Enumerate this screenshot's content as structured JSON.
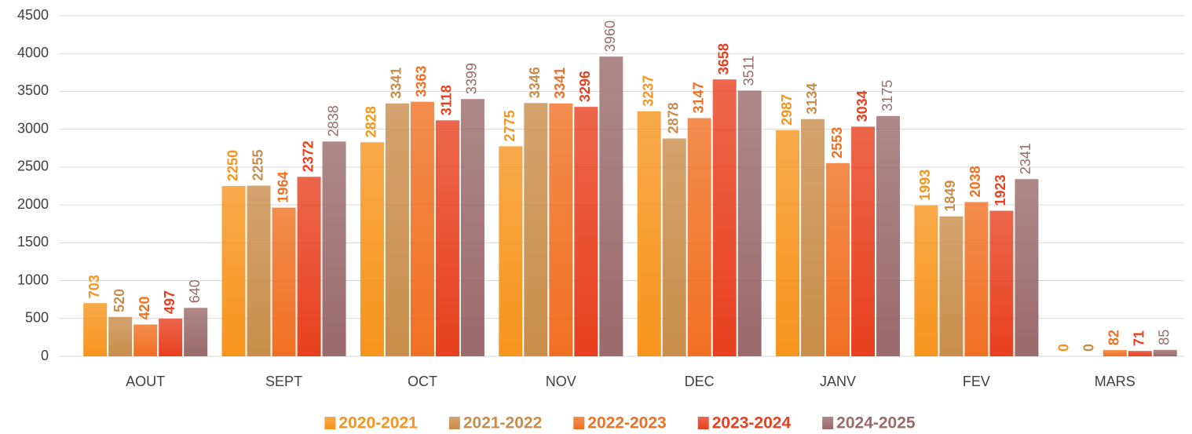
{
  "chart_data": {
    "type": "bar",
    "categories": [
      "AOUT",
      "SEPT",
      "OCT",
      "NOV",
      "DEC",
      "JANV",
      "FEV",
      "MARS"
    ],
    "series": [
      {
        "name": "2020-2021",
        "color": "#f7941d",
        "label_bold": true,
        "values": [
          703,
          2250,
          2828,
          2775,
          3237,
          2987,
          1993,
          0
        ]
      },
      {
        "name": "2021-2022",
        "color": "#c98d4b",
        "label_bold": true,
        "values": [
          520,
          2255,
          3341,
          3346,
          2878,
          3134,
          1849,
          0
        ]
      },
      {
        "name": "2022-2023",
        "color": "#f07022",
        "label_bold": true,
        "values": [
          420,
          1964,
          3363,
          3341,
          3147,
          2553,
          2038,
          82
        ]
      },
      {
        "name": "2023-2024",
        "color": "#e8401f",
        "label_bold": true,
        "values": [
          497,
          2372,
          3118,
          3296,
          3658,
          3034,
          1923,
          71
        ]
      },
      {
        "name": "2024-2025",
        "color": "#9b6a6a",
        "label_bold": false,
        "values": [
          640,
          2838,
          3399,
          3960,
          3511,
          3175,
          2341,
          85
        ]
      }
    ],
    "ylim": [
      0,
      4500
    ],
    "yticks": [
      0,
      500,
      1000,
      1500,
      2000,
      2500,
      3000,
      3500,
      4000,
      4500
    ],
    "grid": true,
    "legend": "bottom"
  }
}
